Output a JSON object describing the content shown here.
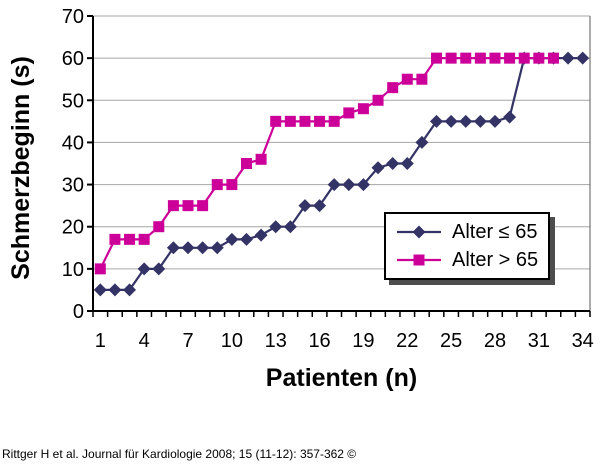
{
  "chart_data": {
    "type": "line",
    "title": "",
    "xlabel": "Patienten (n)",
    "ylabel": "Schmerzbeginn (s)",
    "ylim": [
      0,
      70
    ],
    "y_tick_step": 10,
    "x_categories_count": 34,
    "x_tick_labels": [
      1,
      4,
      7,
      10,
      13,
      16,
      19,
      22,
      25,
      28,
      31,
      34
    ],
    "grid": "horizontal",
    "legend_position": "middle-right",
    "colors": {
      "grid": "#a6a6a6",
      "axis": "#000000",
      "plot_border": "#595959",
      "legend_shadow": "#4d4d4d"
    },
    "series": [
      {
        "name": "Alter ≤ 65",
        "marker": "diamond",
        "color": "#333366",
        "values": [
          5,
          5,
          5,
          10,
          10,
          15,
          15,
          15,
          15,
          17,
          17,
          18,
          20,
          20,
          25,
          25,
          30,
          30,
          30,
          34,
          35,
          35,
          40,
          45,
          45,
          45,
          45,
          45,
          46,
          60,
          60,
          60,
          60,
          60
        ]
      },
      {
        "name": "Alter > 65",
        "marker": "square",
        "color": "#cc0099",
        "values": [
          10,
          17,
          17,
          17,
          20,
          25,
          25,
          25,
          30,
          30,
          35,
          36,
          45,
          45,
          45,
          45,
          45,
          47,
          48,
          50,
          53,
          55,
          55,
          60,
          60,
          60,
          60,
          60,
          60,
          60,
          60,
          60
        ]
      }
    ]
  },
  "caption": "Rittger H et al. Journal für Kardiologie 2008; 15 (11-12): 357-362 ©"
}
